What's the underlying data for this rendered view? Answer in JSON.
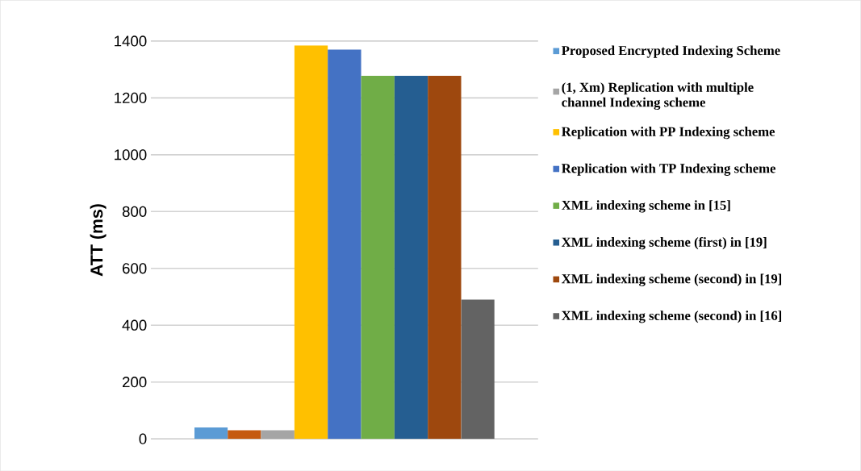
{
  "chart_data": {
    "type": "bar",
    "ylabel": "ATT (ms)",
    "categories": [
      null
    ],
    "series": [
      {
        "name": "Proposed Encrypted Indexing Scheme",
        "color": "#5b9bd5",
        "values": [
          40
        ]
      },
      {
        "color": "#c55a11",
        "values": [
          30
        ]
      },
      {
        "name": "(1, Xm) Replication with multiple channel Indexing scheme",
        "color": "#a5a5a5",
        "values": [
          30
        ]
      },
      {
        "name": "Replication with PP Indexing scheme",
        "color": "#ffc000",
        "values": [
          1385
        ]
      },
      {
        "name": "Replication with TP Indexing scheme",
        "color": "#4472c4",
        "values": [
          1370
        ]
      },
      {
        "name": "XML indexing scheme in [15]",
        "color": "#70ad47",
        "values": [
          1278
        ]
      },
      {
        "name": "XML indexing scheme (first) in [19]",
        "color": "#255e91",
        "values": [
          1278
        ]
      },
      {
        "name": "XML indexing scheme (second) in [19]",
        "color": "#9e480e",
        "values": [
          1278
        ]
      },
      {
        "name": "XML indexing scheme (second) in [16]",
        "color": "#636363",
        "values": [
          490
        ]
      }
    ],
    "ylim": [
      0,
      1400
    ],
    "yticks": [
      0,
      200,
      400,
      600,
      800,
      1000,
      1200,
      1400
    ],
    "grid": "y",
    "legend": "right"
  }
}
